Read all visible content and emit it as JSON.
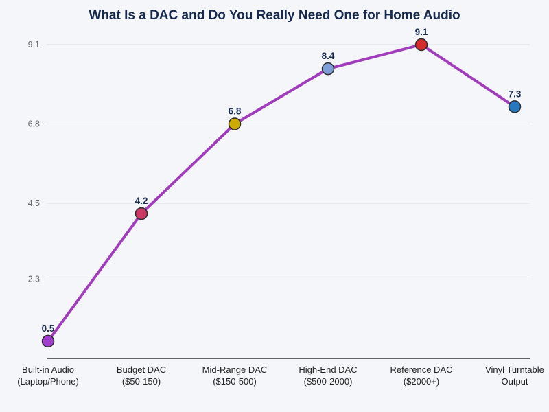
{
  "chart_data": {
    "type": "line",
    "title": "What Is a DAC and Do You Really Need One for Home Audio",
    "categories": [
      [
        "Built-in Audio",
        "(Laptop/Phone)"
      ],
      [
        "Budget DAC",
        "($50-150)"
      ],
      [
        "Mid-Range DAC",
        "($150-500)"
      ],
      [
        "High-End DAC",
        "($500-2000)"
      ],
      [
        "Reference DAC",
        "($2000+)"
      ],
      [
        "Vinyl Turntable",
        "Output"
      ]
    ],
    "values": [
      0.5,
      4.2,
      6.8,
      8.4,
      9.1,
      7.3
    ],
    "data_labels": [
      "0.5",
      "4.2",
      "6.8",
      "8.4",
      "9.1",
      "7.3"
    ],
    "yticks": [
      2.3,
      4.5,
      6.8,
      9.1
    ],
    "ylim": [
      0,
      9.1
    ],
    "grid": true,
    "legend": "none",
    "xlabel": "",
    "ylabel": "",
    "line_color": "#a13dbd",
    "point_colors": [
      "#a13dcd",
      "#cc3a66",
      "#ccaa00",
      "#7d9ed8",
      "#d62b2b",
      "#2878be"
    ],
    "marker_stroke": "#2b2b2b",
    "background": "#f4f6fa",
    "grid_color": "#d9dde4",
    "axis_color": "#333333",
    "tick_label_color": "#666666",
    "x_label_color": "#222222",
    "data_label_color": "#16294f",
    "title_color": "#16294f"
  }
}
